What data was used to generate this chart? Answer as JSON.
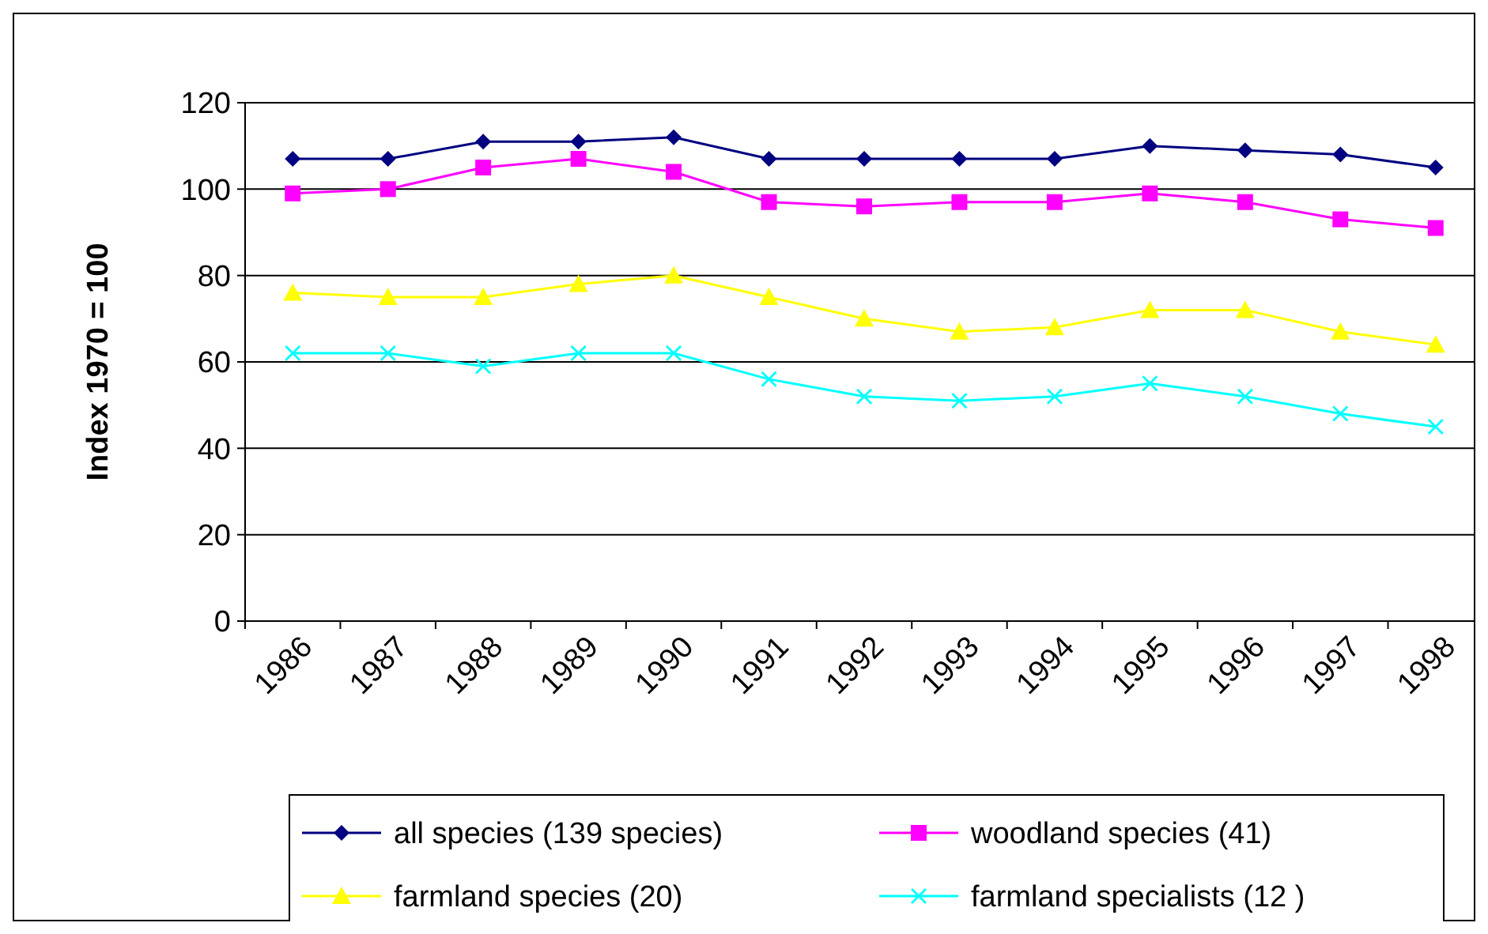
{
  "chart_data": {
    "type": "line",
    "ylabel": "Index 1970 = 100",
    "categories": [
      "1986",
      "1987",
      "1988",
      "1989",
      "1990",
      "1991",
      "1992",
      "1993",
      "1994",
      "1995",
      "1996",
      "1997",
      "1998"
    ],
    "ylim": [
      0,
      120
    ],
    "yticks": [
      0,
      20,
      40,
      60,
      80,
      100,
      120
    ],
    "grid": "y",
    "legend": "bottom",
    "series": [
      {
        "name": "all species (139 species)",
        "color": "#000080",
        "marker": "diamond",
        "values": [
          107,
          107,
          111,
          111,
          112,
          107,
          107,
          107,
          107,
          110,
          109,
          108,
          105
        ]
      },
      {
        "name": "woodland species (41)",
        "color": "#ff00ff",
        "marker": "square",
        "values": [
          99,
          100,
          105,
          107,
          104,
          97,
          96,
          97,
          97,
          99,
          97,
          93,
          91
        ]
      },
      {
        "name": "farmland species (20)",
        "color": "#ffff00",
        "marker": "triangle",
        "values": [
          76,
          75,
          75,
          78,
          80,
          75,
          70,
          67,
          68,
          72,
          72,
          67,
          64
        ]
      },
      {
        "name": "farmland specialists (12 )",
        "color": "#00ffff",
        "marker": "cross",
        "values": [
          62,
          62,
          59,
          62,
          62,
          56,
          52,
          51,
          52,
          55,
          52,
          48,
          45
        ]
      }
    ]
  }
}
